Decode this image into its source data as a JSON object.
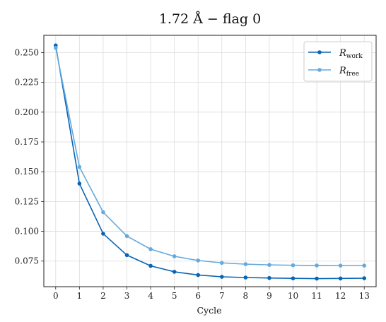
{
  "chart_data": {
    "type": "line",
    "title": "1.72 Å  −  flag 0",
    "xlabel": "Cycle",
    "ylabel": "",
    "x": [
      0,
      1,
      2,
      3,
      4,
      5,
      6,
      7,
      8,
      9,
      10,
      11,
      12,
      13
    ],
    "xlim": [
      -0.5,
      13.5
    ],
    "ylim": [
      0.0535,
      0.2645
    ],
    "xticks": [
      "0",
      "1",
      "2",
      "3",
      "4",
      "5",
      "6",
      "7",
      "8",
      "9",
      "10",
      "11",
      "12",
      "13"
    ],
    "yticks": [
      0.075,
      0.1,
      0.125,
      0.15,
      0.175,
      0.2,
      0.225,
      0.25
    ],
    "ytick_labels": [
      "0.075",
      "0.100",
      "0.125",
      "0.150",
      "0.175",
      "0.200",
      "0.225",
      "0.250"
    ],
    "grid": true,
    "legend_position": "top-right",
    "series": [
      {
        "name": "R",
        "subscript": "work",
        "color": "#0864b4",
        "values": [
          0.256,
          0.14,
          0.098,
          0.08,
          0.071,
          0.066,
          0.0633,
          0.0618,
          0.0612,
          0.0608,
          0.0605,
          0.0603,
          0.0604,
          0.0606
        ]
      },
      {
        "name": "R",
        "subscript": "free",
        "color": "#64aade",
        "values": [
          0.254,
          0.154,
          0.116,
          0.096,
          0.085,
          0.079,
          0.0755,
          0.0735,
          0.0724,
          0.0718,
          0.0715,
          0.0713,
          0.0712,
          0.0712
        ]
      }
    ]
  }
}
